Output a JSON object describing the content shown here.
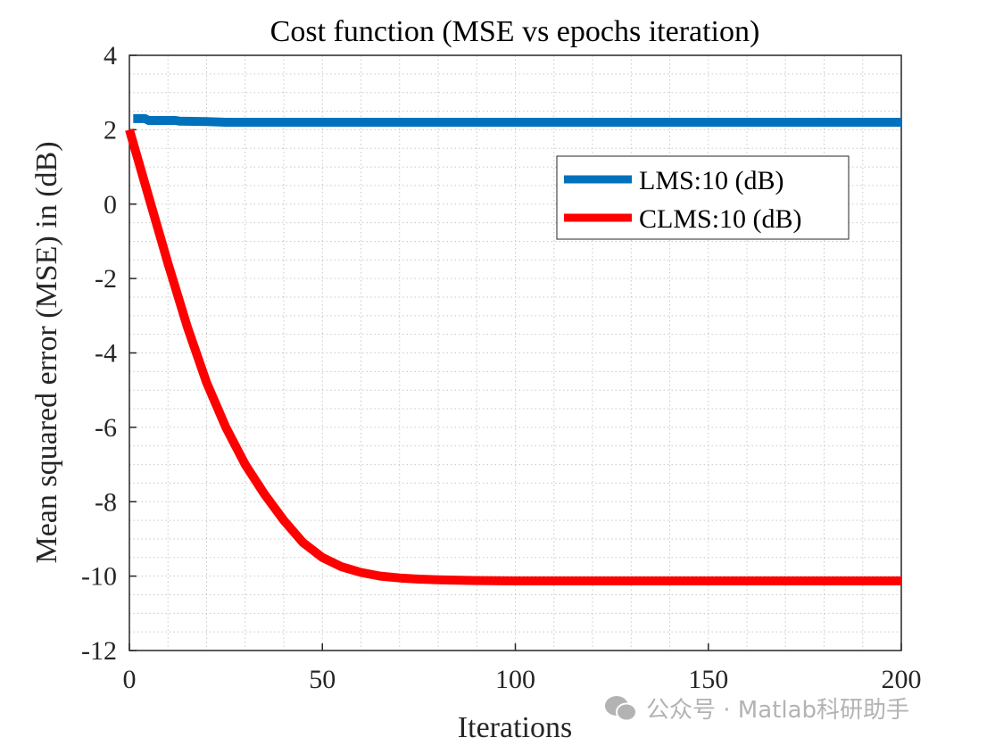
{
  "chart_data": {
    "type": "line",
    "title": "Cost function (MSE vs epochs iteration)",
    "xlabel": "Iterations",
    "ylabel": "Mean squared error (MSE) in (dB)",
    "xlim": [
      0,
      200
    ],
    "ylim": [
      -12,
      4
    ],
    "xticks": [
      "0",
      "50",
      "100",
      "150",
      "200"
    ],
    "yticks": [
      "4",
      "2",
      "0",
      "-2",
      "-4",
      "-6",
      "-8",
      "-10",
      "-12"
    ],
    "grid": "minor dotted",
    "legend_position": "top-right",
    "series": [
      {
        "name": "LMS:10 (dB)",
        "color": "#0072BD",
        "x": [
          1,
          4,
          5,
          12,
          13,
          20,
          25,
          50,
          100,
          150,
          200
        ],
        "y": [
          2.3,
          2.3,
          2.25,
          2.25,
          2.23,
          2.22,
          2.2,
          2.2,
          2.2,
          2.2,
          2.2
        ]
      },
      {
        "name": "CLMS:10 (dB)",
        "color": "#FF0000",
        "x": [
          0,
          5,
          10,
          15,
          20,
          25,
          30,
          35,
          40,
          45,
          50,
          55,
          60,
          65,
          70,
          75,
          80,
          90,
          100,
          150,
          200
        ],
        "y": [
          2.0,
          0.2,
          -1.6,
          -3.3,
          -4.8,
          -6.0,
          -7.0,
          -7.8,
          -8.5,
          -9.1,
          -9.5,
          -9.75,
          -9.9,
          -10.0,
          -10.05,
          -10.08,
          -10.1,
          -10.12,
          -10.13,
          -10.13,
          -10.13
        ]
      }
    ]
  },
  "watermark": {
    "icon": "wechat-icon",
    "text": "公众号 · Matlab科研助手"
  }
}
